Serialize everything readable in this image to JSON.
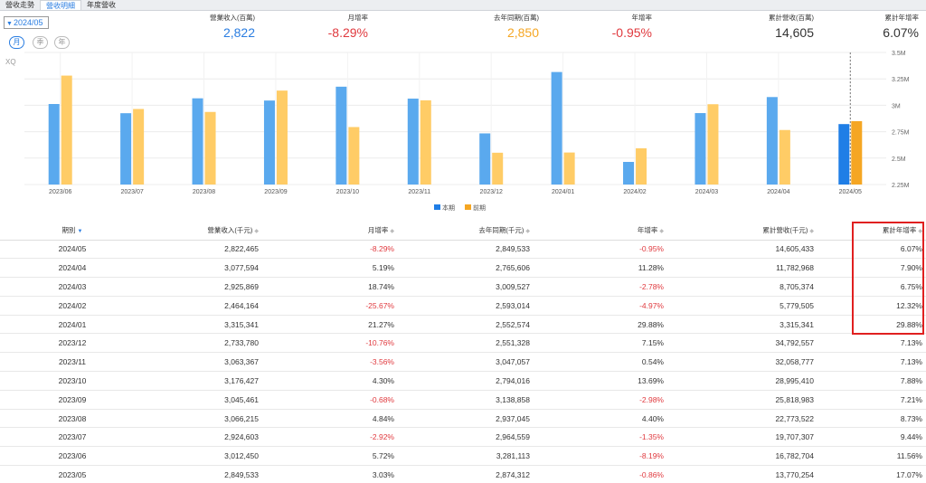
{
  "tabs": [
    "營收走勢",
    "營收明細",
    "年度營收"
  ],
  "active_tab": 1,
  "period_select": "2024/05",
  "range_buttons": [
    "月",
    "季",
    "年"
  ],
  "stats": [
    {
      "label": "營業收入(百萬)",
      "value": "2,822",
      "color": "#2a7de1"
    },
    {
      "label": "月增率",
      "value": "-8.29%",
      "color": "#e0393e"
    },
    {
      "label": "去年同期(百萬)",
      "value": "2,850",
      "color": "#f5a623"
    },
    {
      "label": "年增率",
      "value": "-0.95%",
      "color": "#e0393e"
    },
    {
      "label": "累計營收(百萬)",
      "value": "14,605",
      "color": "#333333"
    },
    {
      "label": "累計年增率",
      "value": "6.07%",
      "color": "#333333"
    }
  ],
  "chart_watermark": "XQ",
  "chart_data": {
    "type": "bar",
    "categories": [
      "2023/06",
      "2023/07",
      "2023/08",
      "2023/09",
      "2023/10",
      "2023/11",
      "2023/12",
      "2024/01",
      "2024/02",
      "2024/03",
      "2024/04",
      "2024/05"
    ],
    "series": [
      {
        "name": "本期",
        "color": "#5aa9ee",
        "highlight_color": "#1f7ee6",
        "values": [
          3.012,
          2.925,
          3.066,
          3.045,
          3.176,
          3.063,
          2.734,
          3.315,
          2.464,
          2.926,
          3.078,
          2.822
        ]
      },
      {
        "name": "前期",
        "color": "#ffcc66",
        "highlight_color": "#f5a623",
        "values": [
          3.281,
          2.965,
          2.937,
          3.139,
          2.794,
          3.047,
          2.551,
          2.553,
          2.593,
          3.01,
          2.766,
          2.85
        ]
      }
    ],
    "ylim": [
      2.25,
      3.5
    ],
    "yticks": [
      2.25,
      2.5,
      2.75,
      3.0,
      3.25,
      3.5
    ],
    "ytick_labels": [
      "2.25M",
      "2.5M",
      "2.75M",
      "3M",
      "3.25M",
      "3.5M"
    ],
    "legend_position": "bottom-center"
  },
  "table": {
    "headers": [
      "期別",
      "營業收入(千元)",
      "月增率",
      "去年同期(千元)",
      "年增率",
      "累計營收(千元)",
      "累計年增率"
    ],
    "rows": [
      [
        "2024/05",
        "2,822,465",
        "-8.29%",
        "2,849,533",
        "-0.95%",
        "14,605,433",
        "6.07%"
      ],
      [
        "2024/04",
        "3,077,594",
        "5.19%",
        "2,765,606",
        "11.28%",
        "11,782,968",
        "7.90%"
      ],
      [
        "2024/03",
        "2,925,869",
        "18.74%",
        "3,009,527",
        "-2.78%",
        "8,705,374",
        "6.75%"
      ],
      [
        "2024/02",
        "2,464,164",
        "-25.67%",
        "2,593,014",
        "-4.97%",
        "5,779,505",
        "12.32%"
      ],
      [
        "2024/01",
        "3,315,341",
        "21.27%",
        "2,552,574",
        "29.88%",
        "3,315,341",
        "29.88%"
      ],
      [
        "2023/12",
        "2,733,780",
        "-10.76%",
        "2,551,328",
        "7.15%",
        "34,792,557",
        "7.13%"
      ],
      [
        "2023/11",
        "3,063,367",
        "-3.56%",
        "3,047,057",
        "0.54%",
        "32,058,777",
        "7.13%"
      ],
      [
        "2023/10",
        "3,176,427",
        "4.30%",
        "2,794,016",
        "13.69%",
        "28,995,410",
        "7.88%"
      ],
      [
        "2023/09",
        "3,045,461",
        "-0.68%",
        "3,138,858",
        "-2.98%",
        "25,818,983",
        "7.21%"
      ],
      [
        "2023/08",
        "3,066,215",
        "4.84%",
        "2,937,045",
        "4.40%",
        "22,773,522",
        "8.73%"
      ],
      [
        "2023/07",
        "2,924,603",
        "-2.92%",
        "2,964,559",
        "-1.35%",
        "19,707,307",
        "9.44%"
      ],
      [
        "2023/06",
        "3,012,450",
        "5.72%",
        "3,281,113",
        "-8.19%",
        "16,782,704",
        "11.56%"
      ],
      [
        "2023/05",
        "2,849,533",
        "3.03%",
        "2,874,312",
        "-0.86%",
        "13,770,254",
        "17.07%"
      ]
    ]
  }
}
